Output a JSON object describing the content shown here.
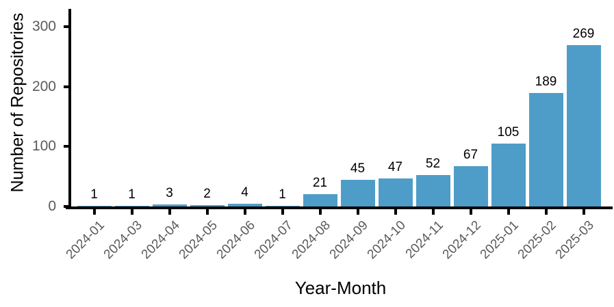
{
  "chart_data": {
    "type": "bar",
    "title": "",
    "xlabel": "Year-Month",
    "ylabel": "Number of Repositories",
    "categories": [
      "2024-01",
      "2024-03",
      "2024-04",
      "2024-05",
      "2024-06",
      "2024-07",
      "2024-08",
      "2024-09",
      "2024-10",
      "2024-11",
      "2024-12",
      "2025-01",
      "2025-02",
      "2025-03"
    ],
    "values": [
      1,
      1,
      3,
      2,
      4,
      1,
      21,
      45,
      47,
      52,
      67,
      105,
      189,
      269
    ],
    "yticks": [
      0,
      100,
      200,
      300
    ],
    "ylim": [
      0,
      330
    ],
    "grid": false,
    "legend": null,
    "value_labels_shown": true,
    "x_tick_rotation_deg": 45,
    "bar_color": "#4e9dc8",
    "axis_color": "#000000",
    "tick_label_color": "#5a5a5a",
    "text_color": "#000000",
    "background_color": "#ffffff"
  }
}
